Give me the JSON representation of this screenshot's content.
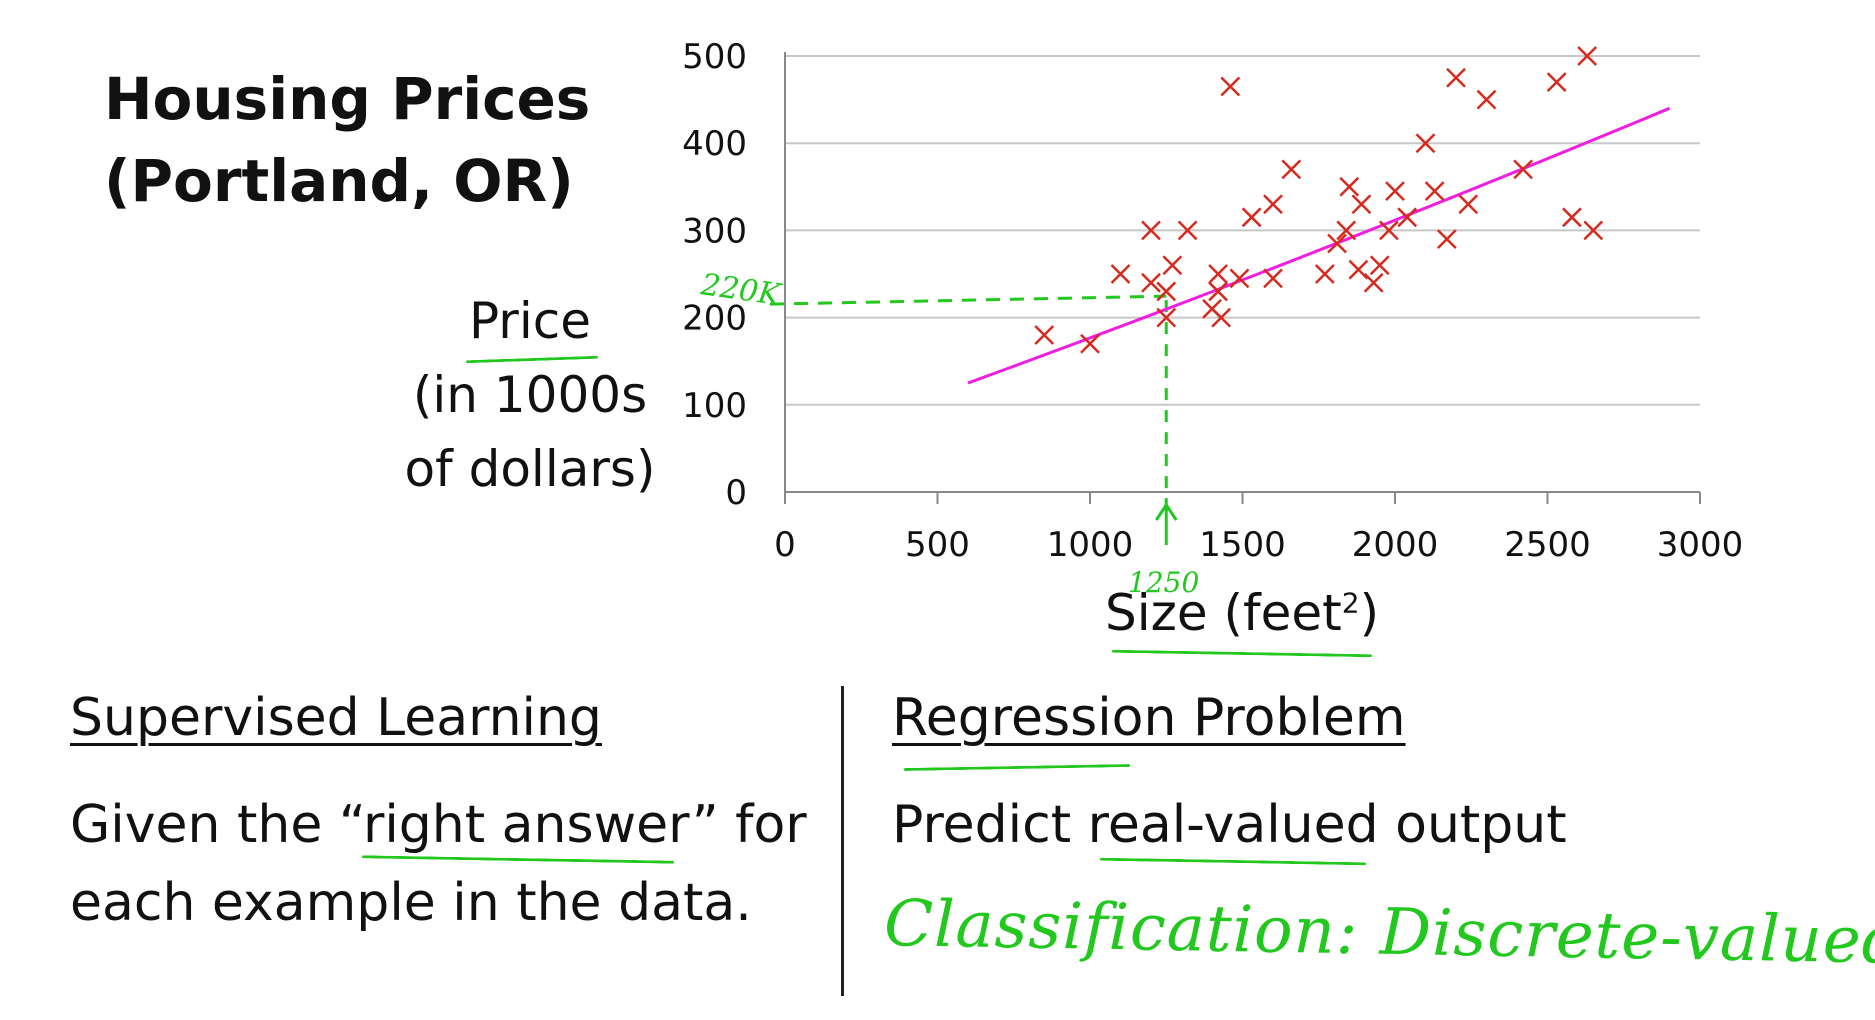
{
  "title_line1": "Housing Prices",
  "title_line2": "(Portland, OR)",
  "y_label": [
    "Price",
    "(in 1000s",
    "of dollars)"
  ],
  "x_label": "Size (feet",
  "x_label_sup": "2",
  "x_label_close": ")",
  "left_section": {
    "heading": "Supervised Learning",
    "line1_a": "Given the “",
    "line1_b": "right answer",
    "line1_c": "” for",
    "line2": "each example in the data."
  },
  "right_section": {
    "heading": "Regression Problem",
    "line1_a": "Predict ",
    "line1_b": "real-valued",
    "line1_c": " output",
    "handwritten": "Classification: Discrete-valued output"
  },
  "annotations": {
    "y_mark": "220K",
    "x_mark": "1250"
  },
  "colors": {
    "point": "#d62a1e",
    "fit_line": "#f01ee0",
    "annotation": "#22c81e",
    "grid": "#c8c8c8"
  },
  "chart_data": {
    "type": "scatter",
    "title": "Housing Prices (Portland, OR)",
    "xlabel": "Size (feet²)",
    "ylabel": "Price (in 1000s of dollars)",
    "xlim": [
      0,
      3000
    ],
    "ylim": [
      0,
      500
    ],
    "xticks": [
      0,
      500,
      1000,
      1500,
      2000,
      2500,
      3000
    ],
    "yticks": [
      0,
      100,
      200,
      300,
      400,
      500
    ],
    "grid": true,
    "points": [
      [
        850,
        180
      ],
      [
        1000,
        170
      ],
      [
        1100,
        250
      ],
      [
        1200,
        300
      ],
      [
        1200,
        240
      ],
      [
        1250,
        230
      ],
      [
        1250,
        200
      ],
      [
        1270,
        260
      ],
      [
        1320,
        300
      ],
      [
        1400,
        210
      ],
      [
        1420,
        250
      ],
      [
        1420,
        230
      ],
      [
        1430,
        200
      ],
      [
        1460,
        465
      ],
      [
        1490,
        245
      ],
      [
        1530,
        315
      ],
      [
        1600,
        245
      ],
      [
        1600,
        330
      ],
      [
        1660,
        370
      ],
      [
        1770,
        250
      ],
      [
        1810,
        285
      ],
      [
        1840,
        300
      ],
      [
        1850,
        350
      ],
      [
        1880,
        255
      ],
      [
        1890,
        330
      ],
      [
        1930,
        240
      ],
      [
        1950,
        260
      ],
      [
        1980,
        300
      ],
      [
        2000,
        345
      ],
      [
        2040,
        315
      ],
      [
        2100,
        400
      ],
      [
        2130,
        345
      ],
      [
        2170,
        290
      ],
      [
        2200,
        475
      ],
      [
        2240,
        330
      ],
      [
        2300,
        450
      ],
      [
        2420,
        370
      ],
      [
        2530,
        470
      ],
      [
        2580,
        315
      ],
      [
        2630,
        500
      ],
      [
        2650,
        300
      ]
    ],
    "fit_line": {
      "x": [
        600,
        2900
      ],
      "y": [
        125,
        440
      ]
    },
    "prediction": {
      "x": 1250,
      "y": 220
    }
  }
}
